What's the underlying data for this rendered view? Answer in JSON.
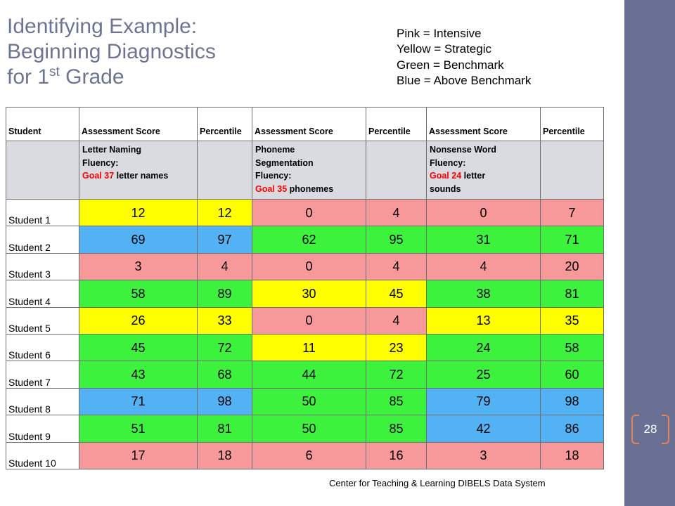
{
  "slide": {
    "title": {
      "line1": "Identifying Example:",
      "line2": "Beginning Diagnostics",
      "line3_pre": "for 1",
      "line3_sup": "st",
      "line3_post": "Grade"
    },
    "legend": [
      "Pink = Intensive",
      "Yellow = Strategic",
      "Green = Benchmark",
      "Blue = Above Benchmark"
    ],
    "footer": "Center for Teaching & Learning DIBELS Data System",
    "page_number": "28",
    "colors": {
      "title": "#6d7493",
      "sidebar": "#697093",
      "page_bracket": "#e4835a",
      "goal_text": "#ff0000",
      "description_row": "#d9dbe0"
    }
  },
  "table": {
    "headers": [
      "Student",
      "Assessment Score",
      "Percentile",
      "Assessment Score",
      "Percentile",
      "Assessment Score",
      "Percentile"
    ],
    "descriptions": [
      {
        "lines": [
          "Letter Naming",
          "Fluency:"
        ],
        "goal": "Goal 37",
        "goal_unit": "letter names"
      },
      {
        "lines": [
          "Phoneme",
          "Segmentation",
          "Fluency:"
        ],
        "goal": "Goal 35",
        "goal_unit": "phonemes"
      },
      {
        "lines": [
          "Nonsense Word",
          "Fluency:"
        ],
        "goal": "Goal 24",
        "goal_unit": "letter",
        "lines_after": [
          "sounds"
        ]
      }
    ],
    "rows": [
      {
        "name": "Student 1",
        "cells": [
          {
            "v": 12,
            "fill": "#ffff00"
          },
          {
            "v": 12,
            "fill": "#ffff00"
          },
          {
            "v": 0,
            "fill": "#f7999b"
          },
          {
            "v": 4,
            "fill": "#f7999b"
          },
          {
            "v": 0,
            "fill": "#f7999b"
          },
          {
            "v": 7,
            "fill": "#f7999b"
          }
        ]
      },
      {
        "name": "Student 2",
        "cells": [
          {
            "v": 69,
            "fill": "#52b2f4"
          },
          {
            "v": 97,
            "fill": "#52b2f4"
          },
          {
            "v": 62,
            "fill": "#3cf23c"
          },
          {
            "v": 95,
            "fill": "#3cf23c"
          },
          {
            "v": 31,
            "fill": "#3cf23c"
          },
          {
            "v": 71,
            "fill": "#3cf23c"
          }
        ]
      },
      {
        "name": "Student 3",
        "cells": [
          {
            "v": 3,
            "fill": "#f7999b"
          },
          {
            "v": 4,
            "fill": "#f7999b"
          },
          {
            "v": 0,
            "fill": "#f7999b"
          },
          {
            "v": 4,
            "fill": "#f7999b"
          },
          {
            "v": 4,
            "fill": "#f7999b"
          },
          {
            "v": 20,
            "fill": "#f7999b"
          }
        ]
      },
      {
        "name": "Student 4",
        "cells": [
          {
            "v": 58,
            "fill": "#3cf23c"
          },
          {
            "v": 89,
            "fill": "#3cf23c"
          },
          {
            "v": 30,
            "fill": "#ffff00"
          },
          {
            "v": 45,
            "fill": "#ffff00"
          },
          {
            "v": 38,
            "fill": "#3cf23c"
          },
          {
            "v": 81,
            "fill": "#3cf23c"
          }
        ]
      },
      {
        "name": "Student 5",
        "cells": [
          {
            "v": 26,
            "fill": "#ffff00"
          },
          {
            "v": 33,
            "fill": "#ffff00"
          },
          {
            "v": 0,
            "fill": "#f7999b"
          },
          {
            "v": 4,
            "fill": "#f7999b"
          },
          {
            "v": 13,
            "fill": "#ffff00"
          },
          {
            "v": 35,
            "fill": "#ffff00"
          }
        ]
      },
      {
        "name": "Student 6",
        "cells": [
          {
            "v": 45,
            "fill": "#3cf23c"
          },
          {
            "v": 72,
            "fill": "#3cf23c"
          },
          {
            "v": 11,
            "fill": "#ffff00"
          },
          {
            "v": 23,
            "fill": "#ffff00"
          },
          {
            "v": 24,
            "fill": "#3cf23c"
          },
          {
            "v": 58,
            "fill": "#3cf23c"
          }
        ]
      },
      {
        "name": "Student 7",
        "cells": [
          {
            "v": 43,
            "fill": "#3cf23c"
          },
          {
            "v": 68,
            "fill": "#3cf23c"
          },
          {
            "v": 44,
            "fill": "#3cf23c"
          },
          {
            "v": 72,
            "fill": "#3cf23c"
          },
          {
            "v": 25,
            "fill": "#3cf23c"
          },
          {
            "v": 60,
            "fill": "#3cf23c"
          }
        ]
      },
      {
        "name": "Student 8",
        "cells": [
          {
            "v": 71,
            "fill": "#52b2f4"
          },
          {
            "v": 98,
            "fill": "#52b2f4"
          },
          {
            "v": 50,
            "fill": "#3cf23c"
          },
          {
            "v": 85,
            "fill": "#3cf23c"
          },
          {
            "v": 79,
            "fill": "#52b2f4"
          },
          {
            "v": 98,
            "fill": "#52b2f4"
          }
        ]
      },
      {
        "name": "Student 9",
        "cells": [
          {
            "v": 51,
            "fill": "#3cf23c"
          },
          {
            "v": 81,
            "fill": "#3cf23c"
          },
          {
            "v": 50,
            "fill": "#3cf23c"
          },
          {
            "v": 85,
            "fill": "#3cf23c"
          },
          {
            "v": 42,
            "fill": "#52b2f4"
          },
          {
            "v": 86,
            "fill": "#52b2f4"
          }
        ]
      },
      {
        "name": "Student 10",
        "cells": [
          {
            "v": 17,
            "fill": "#f7999b"
          },
          {
            "v": 18,
            "fill": "#f7999b"
          },
          {
            "v": 6,
            "fill": "#f7999b"
          },
          {
            "v": 16,
            "fill": "#f7999b"
          },
          {
            "v": 3,
            "fill": "#f7999b"
          },
          {
            "v": 18,
            "fill": "#f7999b"
          }
        ]
      }
    ]
  }
}
